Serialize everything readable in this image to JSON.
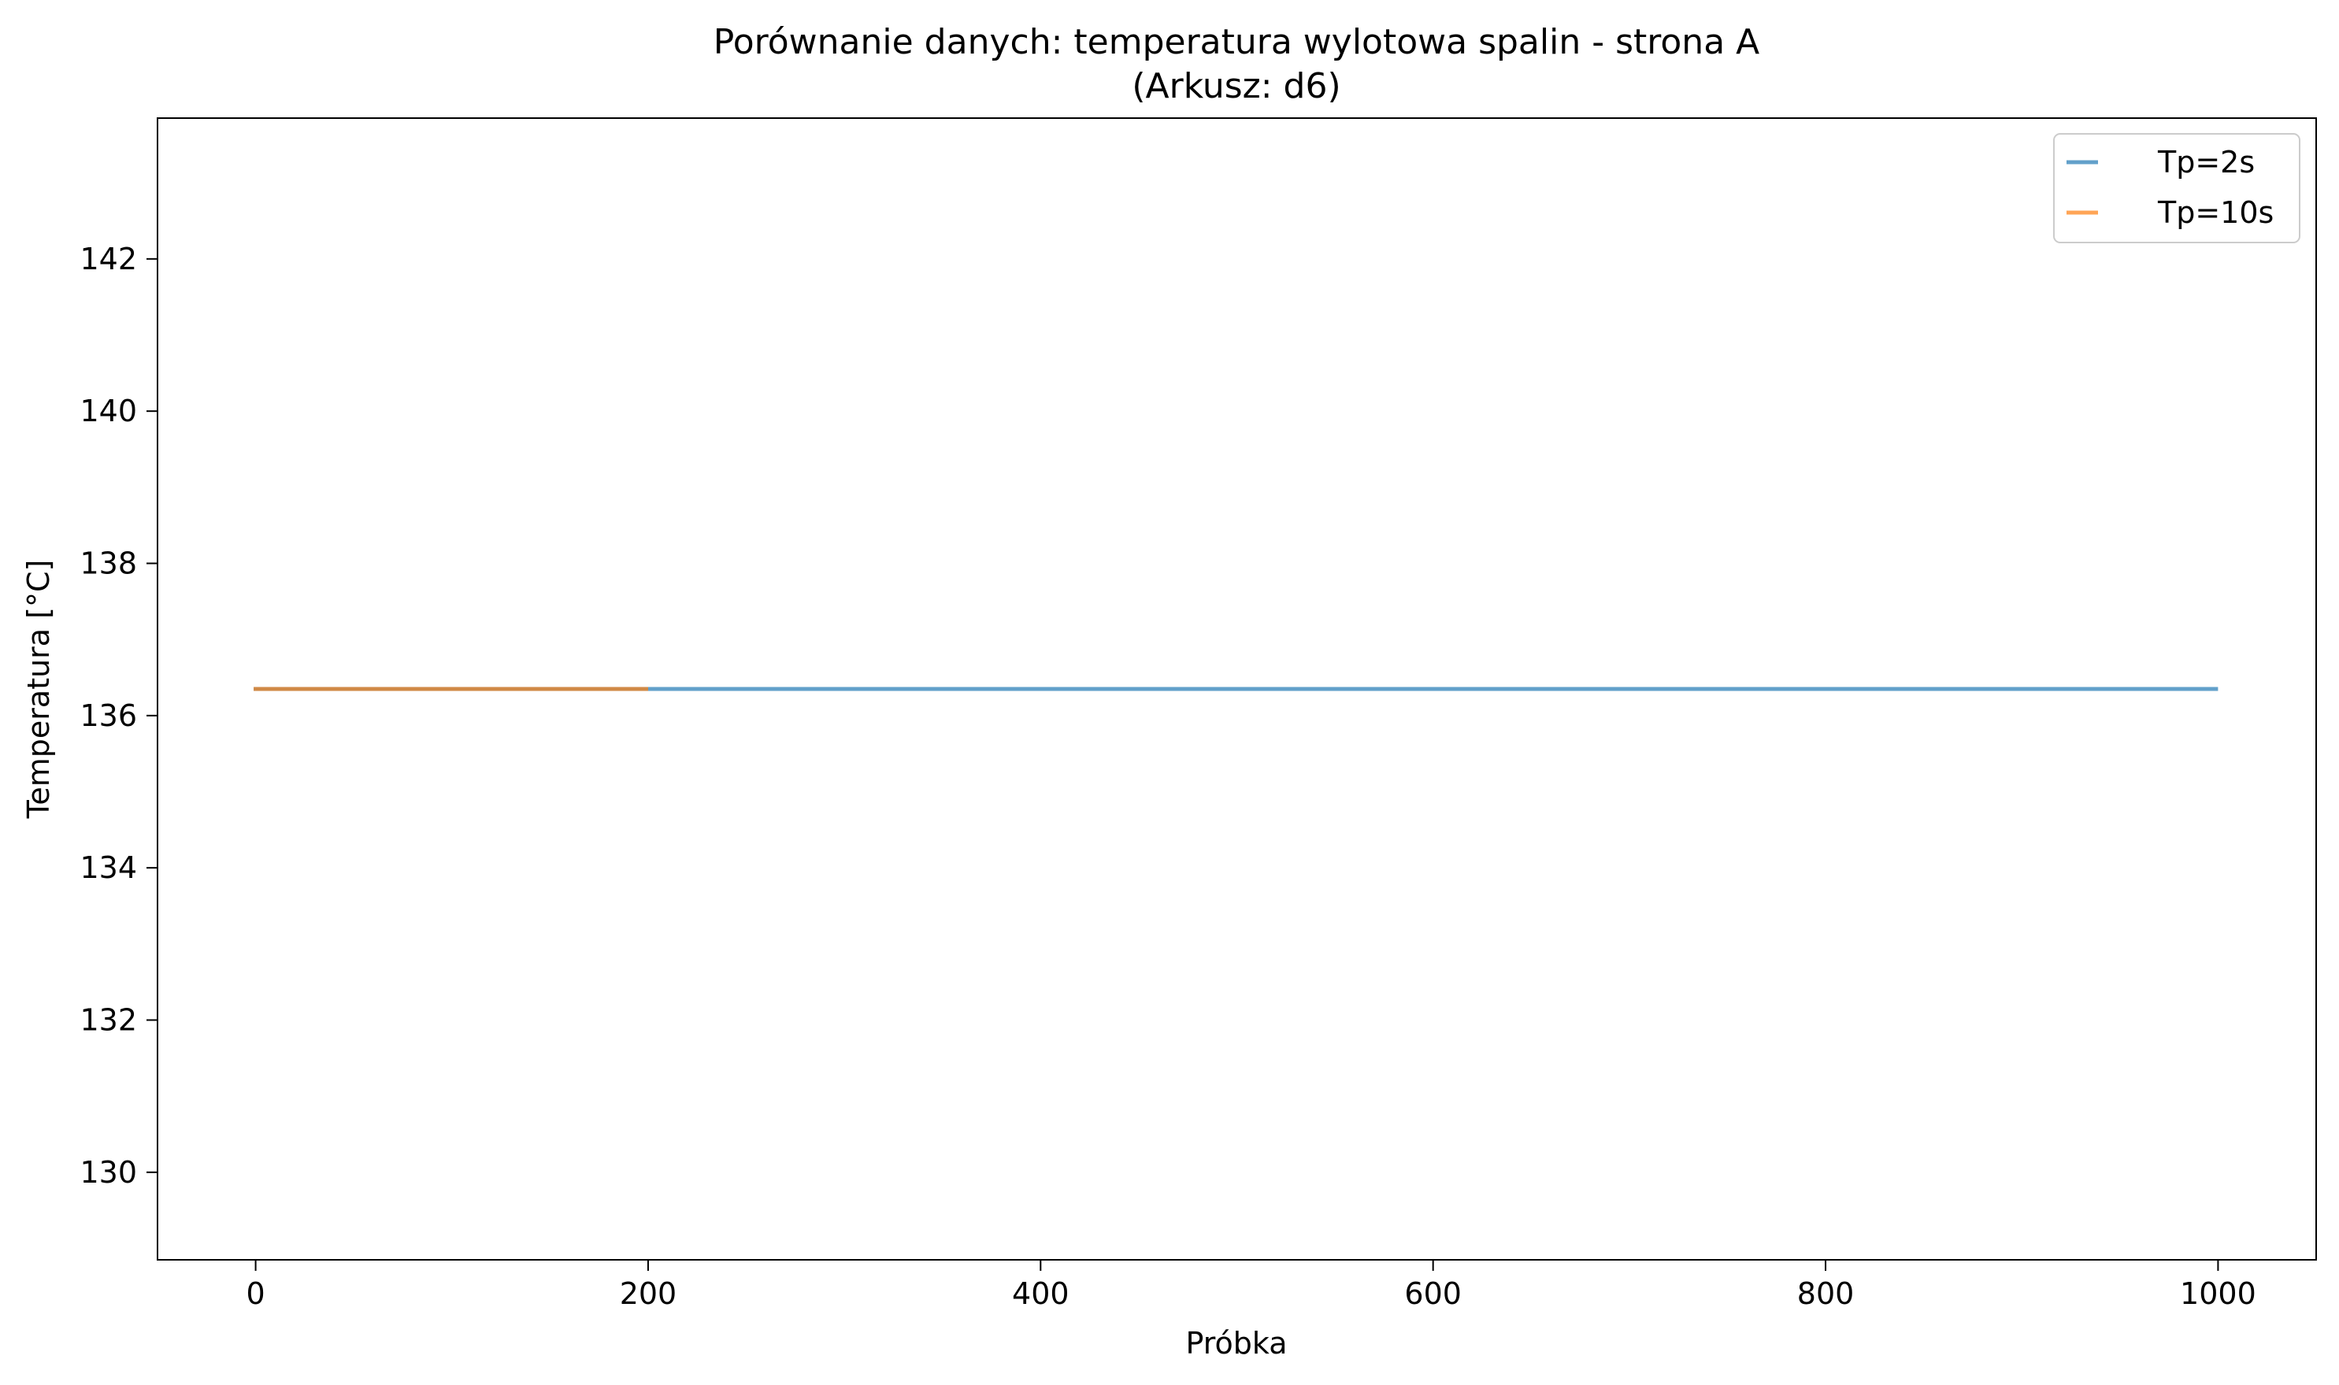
{
  "chart_data": {
    "type": "line",
    "title": "Porównanie danych: temperatura wylotowa spalin - strona A",
    "subtitle": "(Arkusz: d6)",
    "xlabel": "Próbka",
    "ylabel": "Temperatura [°C]",
    "xlim": [
      -50,
      1050
    ],
    "ylim": [
      128.85,
      143.85
    ],
    "xticks": [
      0,
      200,
      400,
      600,
      800,
      1000
    ],
    "yticks": [
      130,
      132,
      134,
      136,
      138,
      140,
      142
    ],
    "grid": false,
    "legend_position": "top-right",
    "series": [
      {
        "name": "Tp=2s",
        "color": "#1f77b4",
        "x": [
          0,
          999
        ],
        "y": [
          136.35,
          136.35
        ]
      },
      {
        "name": "Tp=10s",
        "color": "#ff7f0e",
        "x": [
          0,
          199
        ],
        "y": [
          136.35,
          136.35
        ]
      }
    ]
  }
}
